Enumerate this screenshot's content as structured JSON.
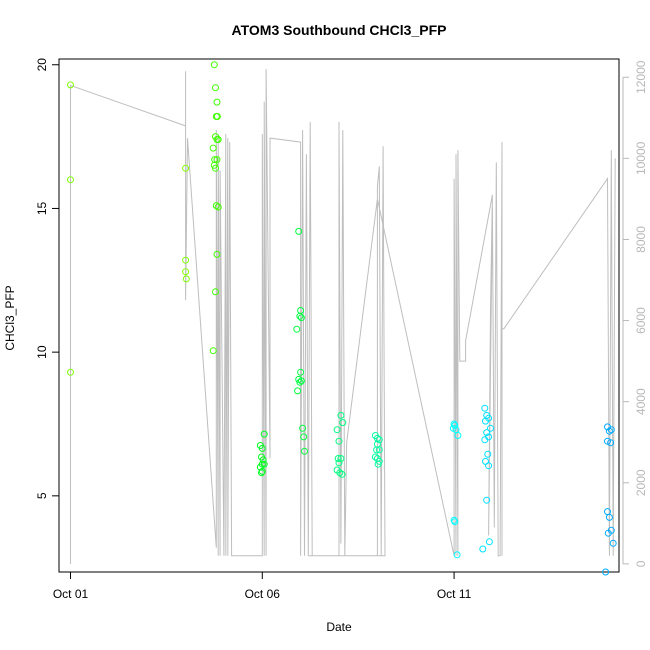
{
  "chart_data": {
    "type": "scatter",
    "title": "ATOM3 Southbound CHCl3_PFP",
    "xlabel": "Date",
    "ylabel": "CHCl3_PFP",
    "xlim": [
      -0.3,
      14.3
    ],
    "ylim": [
      2.35,
      20.2
    ],
    "ylim_right": [
      -200,
      12450
    ],
    "x_ticks": [
      {
        "value": 0,
        "label": "Oct 01"
      },
      {
        "value": 5,
        "label": "Oct 06"
      },
      {
        "value": 10,
        "label": "Oct 11"
      }
    ],
    "y_ticks": [
      5,
      10,
      15,
      20
    ],
    "y2_ticks": [
      0,
      2000,
      4000,
      6000,
      8000,
      10000,
      12000
    ],
    "y2_tick_color": "#b8b8b8",
    "line_color": "#bebebe",
    "altitude_series": {
      "axis": "right",
      "points": [
        [
          0.0,
          0
        ],
        [
          0.0,
          11800
        ],
        [
          3.0,
          10800
        ],
        [
          3.0,
          12150
        ],
        [
          3.0,
          6500
        ],
        [
          3.05,
          10500
        ],
        [
          3.8,
          400
        ],
        [
          3.8,
          10700
        ],
        [
          3.85,
          200
        ],
        [
          3.85,
          10600
        ],
        [
          3.9,
          200
        ],
        [
          3.9,
          9700
        ],
        [
          4.0,
          200
        ],
        [
          4.05,
          10600
        ],
        [
          4.05,
          200
        ],
        [
          4.1,
          10500
        ],
        [
          4.1,
          200
        ],
        [
          4.15,
          10400
        ],
        [
          4.2,
          200
        ],
        [
          5.0,
          200
        ],
        [
          5.0,
          10600
        ],
        [
          5.05,
          200
        ],
        [
          5.05,
          11400
        ],
        [
          5.1,
          200
        ],
        [
          5.1,
          12200
        ],
        [
          5.15,
          7600
        ],
        [
          5.2,
          2600
        ],
        [
          5.2,
          10500
        ],
        [
          6.0,
          10400
        ],
        [
          6.0,
          200
        ],
        [
          6.05,
          10700
        ],
        [
          6.1,
          200
        ],
        [
          6.15,
          10100
        ],
        [
          6.2,
          200
        ],
        [
          6.25,
          10900
        ],
        [
          6.3,
          200
        ],
        [
          7.0,
          200
        ],
        [
          7.0,
          10900
        ],
        [
          7.05,
          500
        ],
        [
          7.1,
          10700
        ],
        [
          7.15,
          200
        ],
        [
          8.0,
          200
        ],
        [
          8.0,
          9300
        ],
        [
          8.05,
          9800
        ],
        [
          8.1,
          200
        ],
        [
          8.15,
          10300
        ],
        [
          8.2,
          200
        ],
        [
          6.2,
          200
        ],
        [
          6.25,
          200
        ],
        [
          7.15,
          200
        ],
        [
          7.2,
          3000
        ],
        [
          8.0,
          9000
        ],
        [
          10.0,
          200
        ],
        [
          10.0,
          9500
        ],
        [
          10.05,
          200
        ],
        [
          10.05,
          10100
        ],
        [
          10.1,
          200
        ],
        [
          10.1,
          10200
        ],
        [
          10.15,
          5000
        ],
        [
          10.2,
          5000
        ],
        [
          10.3,
          5000
        ],
        [
          10.3,
          5500
        ],
        [
          11.0,
          9100
        ],
        [
          10.95,
          6300
        ],
        [
          10.9,
          700
        ],
        [
          11.0,
          8800
        ],
        [
          11.05,
          900
        ],
        [
          11.1,
          9900
        ],
        [
          11.15,
          200
        ],
        [
          11.2,
          200
        ],
        [
          11.25,
          10400
        ],
        [
          11.25,
          200
        ],
        [
          11.25,
          5800
        ],
        [
          11.3,
          5800
        ],
        [
          14.0,
          9500
        ],
        [
          14.05,
          200
        ],
        [
          14.1,
          10200
        ],
        [
          14.15,
          200
        ],
        [
          14.2,
          10000
        ]
      ]
    },
    "x_colors": [
      {
        "x": 0,
        "color": "#80ff00"
      },
      {
        "x": 4,
        "color": "#40ff00"
      },
      {
        "x": 5,
        "color": "#00ff20"
      },
      {
        "x": 6,
        "color": "#00ff40"
      },
      {
        "x": 7,
        "color": "#00ff80"
      },
      {
        "x": 8,
        "color": "#00ffa0"
      },
      {
        "x": 10,
        "color": "#00ffff"
      },
      {
        "x": 11,
        "color": "#00e0ff"
      },
      {
        "x": 14,
        "color": "#00aaff"
      }
    ],
    "points": [
      [
        0.0,
        19.3
      ],
      [
        0.0,
        16.0
      ],
      [
        0.0,
        9.3
      ],
      [
        3.0,
        16.4
      ],
      [
        3.0,
        13.2
      ],
      [
        3.0,
        12.8
      ],
      [
        3.02,
        12.55
      ],
      [
        3.75,
        20.0
      ],
      [
        3.78,
        19.2
      ],
      [
        3.82,
        18.7
      ],
      [
        3.8,
        18.2
      ],
      [
        3.83,
        18.2
      ],
      [
        3.78,
        17.5
      ],
      [
        3.82,
        17.4
      ],
      [
        3.85,
        17.4
      ],
      [
        3.72,
        17.1
      ],
      [
        3.76,
        16.7
      ],
      [
        3.82,
        16.7
      ],
      [
        3.75,
        16.5
      ],
      [
        3.78,
        16.4
      ],
      [
        3.8,
        15.1
      ],
      [
        3.85,
        15.05
      ],
      [
        3.82,
        13.4
      ],
      [
        3.78,
        12.1
      ],
      [
        3.72,
        10.05
      ],
      [
        4.95,
        6.75
      ],
      [
        5.0,
        6.65
      ],
      [
        5.05,
        7.15
      ],
      [
        4.98,
        6.35
      ],
      [
        5.02,
        6.25
      ],
      [
        5.0,
        6.1
      ],
      [
        5.05,
        6.1
      ],
      [
        4.95,
        6.0
      ],
      [
        5.0,
        5.85
      ],
      [
        4.98,
        5.8
      ],
      [
        5.95,
        14.2
      ],
      [
        6.0,
        11.45
      ],
      [
        5.98,
        11.25
      ],
      [
        6.02,
        11.2
      ],
      [
        5.9,
        10.8
      ],
      [
        6.0,
        9.3
      ],
      [
        5.95,
        9.05
      ],
      [
        6.02,
        9.0
      ],
      [
        5.98,
        8.95
      ],
      [
        5.92,
        8.65
      ],
      [
        6.05,
        7.35
      ],
      [
        6.08,
        7.05
      ],
      [
        6.1,
        6.55
      ],
      [
        7.05,
        7.8
      ],
      [
        7.1,
        7.55
      ],
      [
        6.95,
        7.3
      ],
      [
        7.0,
        6.9
      ],
      [
        6.98,
        6.3
      ],
      [
        7.05,
        6.3
      ],
      [
        7.0,
        6.15
      ],
      [
        6.95,
        5.9
      ],
      [
        7.02,
        5.8
      ],
      [
        7.08,
        5.75
      ],
      [
        7.95,
        7.1
      ],
      [
        8.0,
        7.0
      ],
      [
        8.05,
        6.95
      ],
      [
        8.0,
        6.8
      ],
      [
        7.98,
        6.6
      ],
      [
        8.05,
        6.6
      ],
      [
        7.95,
        6.35
      ],
      [
        8.0,
        6.3
      ],
      [
        8.05,
        6.2
      ],
      [
        8.02,
        6.1
      ],
      [
        10.0,
        7.5
      ],
      [
        10.02,
        7.45
      ],
      [
        9.98,
        7.35
      ],
      [
        10.05,
        7.3
      ],
      [
        10.1,
        7.1
      ],
      [
        10.0,
        4.15
      ],
      [
        10.02,
        4.1
      ],
      [
        10.08,
        2.95
      ],
      [
        10.8,
        8.05
      ],
      [
        10.85,
        7.8
      ],
      [
        10.9,
        7.7
      ],
      [
        10.82,
        7.6
      ],
      [
        10.95,
        7.35
      ],
      [
        10.85,
        7.2
      ],
      [
        10.9,
        7.05
      ],
      [
        10.8,
        6.95
      ],
      [
        10.88,
        6.45
      ],
      [
        10.82,
        6.2
      ],
      [
        10.9,
        6.05
      ],
      [
        10.85,
        4.85
      ],
      [
        10.92,
        3.4
      ],
      [
        10.75,
        3.15
      ],
      [
        14.0,
        7.4
      ],
      [
        14.05,
        7.25
      ],
      [
        14.1,
        7.3
      ],
      [
        14.0,
        6.9
      ],
      [
        14.08,
        6.85
      ],
      [
        14.0,
        4.45
      ],
      [
        14.05,
        4.25
      ],
      [
        14.1,
        3.8
      ],
      [
        14.02,
        3.7
      ],
      [
        14.15,
        3.35
      ],
      [
        13.95,
        2.35
      ]
    ]
  }
}
